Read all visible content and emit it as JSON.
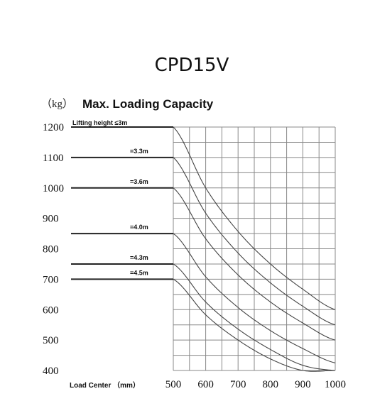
{
  "chart_data": {
    "type": "line",
    "title": "CPD15V",
    "subtitle": "Max. Loading Capacity",
    "y_unit": "（kg）",
    "xlabel": "Load Center （mm）",
    "lifting_height_label": "Lifting height ≤3m",
    "xlim": [
      500,
      1000
    ],
    "ylim": [
      400,
      1200
    ],
    "x_ticks": [
      500,
      600,
      700,
      800,
      900,
      1000
    ],
    "y_ticks": [
      1200,
      1100,
      1000,
      900,
      800,
      700,
      600,
      500,
      400
    ],
    "grid": true,
    "series": [
      {
        "name": "≤3m",
        "x": [
          500,
          600,
          700,
          800,
          900,
          1000
        ],
        "y": [
          1200,
          1000,
          857,
          750,
          667,
          600
        ]
      },
      {
        "name": "=3.3m",
        "x": [
          500,
          600,
          700,
          800,
          900,
          1000
        ],
        "y": [
          1100,
          917,
          786,
          688,
          611,
          550
        ]
      },
      {
        "name": "=3.6m",
        "x": [
          500,
          600,
          700,
          800,
          900,
          1000
        ],
        "y": [
          1000,
          833,
          714,
          625,
          556,
          500
        ]
      },
      {
        "name": "=4.0m",
        "x": [
          500,
          600,
          700,
          800,
          900,
          1000
        ],
        "y": [
          850,
          708,
          607,
          531,
          472,
          425
        ]
      },
      {
        "name": "=4.3m",
        "x": [
          500,
          600,
          700,
          800,
          900,
          1000
        ],
        "y": [
          750,
          625,
          536,
          469,
          417,
          400
        ]
      },
      {
        "name": "=4.5m",
        "x": [
          500,
          600,
          700,
          800,
          900,
          1000
        ],
        "y": [
          700,
          583,
          500,
          438,
          400,
          400
        ]
      }
    ]
  }
}
